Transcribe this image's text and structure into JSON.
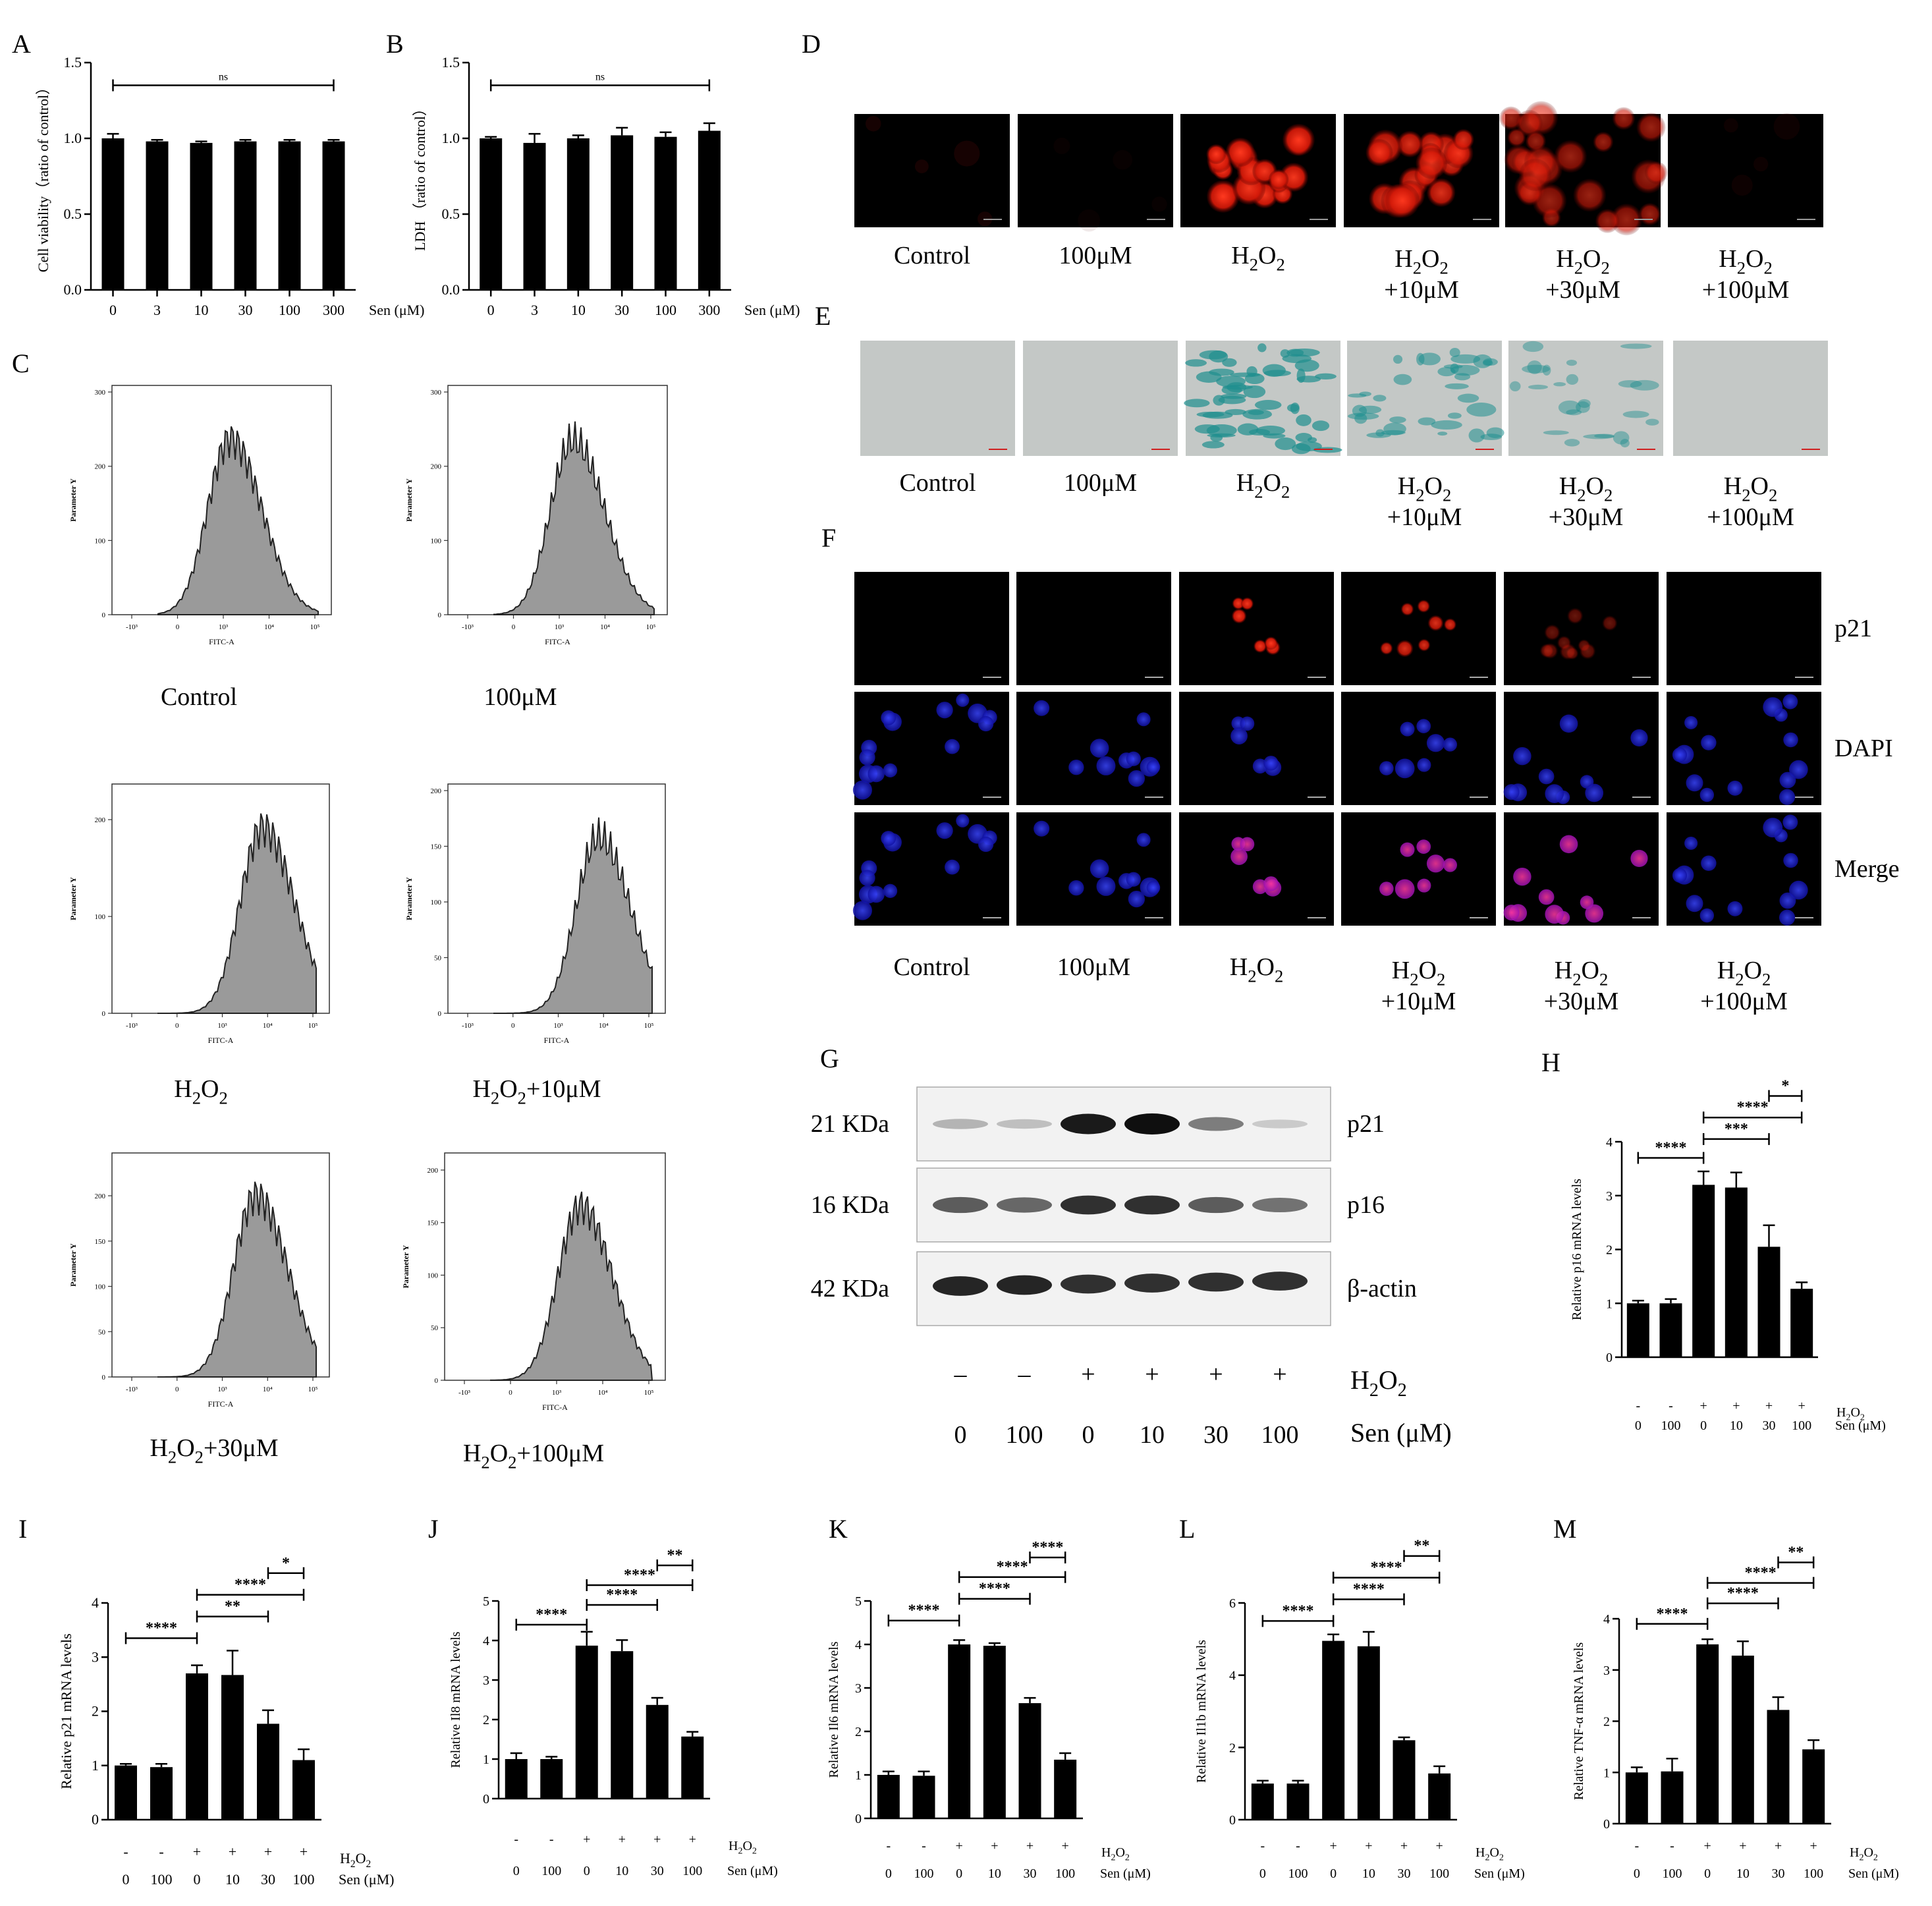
{
  "colors": {
    "bar": "#000000",
    "histogram_fill": "#9a9a9a",
    "red_stain": "#ff2a1a",
    "blue_stain": "#2430ff",
    "beta_gal": "#1f8f8f",
    "background": "#ffffff"
  },
  "panels": {
    "A": {
      "letter": "A"
    },
    "B": {
      "letter": "B"
    },
    "C": {
      "letter": "C",
      "y_axis_label": "Parameter Y",
      "x_axis_label": "FITC-A",
      "plots": [
        {
          "caption": "Control",
          "sub": "",
          "yticks": [
            "0",
            "100",
            "200",
            "300"
          ],
          "ymax": 300,
          "peak_log": 2.3,
          "height_frac": 0.88
        },
        {
          "caption": "100μM",
          "sub": "",
          "yticks": [
            "0",
            "100",
            "200",
            "300"
          ],
          "ymax": 300,
          "peak_log": 2.5,
          "height_frac": 0.87
        },
        {
          "caption": "H",
          "sub": "2",
          "after": "O",
          "sub2": "2",
          "tail": "",
          "yticks": [
            "0",
            "100",
            "200"
          ],
          "ymax": 230,
          "peak_log": 3.3,
          "height_frac": 0.93
        },
        {
          "caption": "H",
          "sub": "2",
          "after": "O",
          "sub2": "2",
          "tail": "+10μM",
          "yticks": [
            "0",
            "50",
            "100",
            "150",
            "200"
          ],
          "ymax": 200,
          "peak_log": 3.3,
          "height_frac": 0.88
        },
        {
          "caption": "H",
          "sub": "2",
          "after": "O",
          "sub2": "2",
          "tail": "+30μM",
          "yticks": [
            "0",
            "50",
            "100",
            "150",
            "200"
          ],
          "ymax": 240,
          "peak_log": 3.1,
          "height_frac": 0.93
        },
        {
          "caption": "H",
          "sub": "2",
          "after": "O",
          "sub2": "2",
          "tail": "+100μM",
          "yticks": [
            "0",
            "50",
            "100",
            "150",
            "200"
          ],
          "ymax": 210,
          "peak_log": 2.8,
          "height_frac": 0.88
        }
      ],
      "xticks": [
        "-10³",
        "0",
        "10³",
        "10⁴",
        "10⁵"
      ]
    },
    "D": {
      "letter": "D",
      "labels": [
        "Control",
        "100μM",
        "H2O2",
        "H2O2+10μM",
        "H2O2+30μM",
        "H2O2+100μM"
      ],
      "red_intensity": [
        0.08,
        0.03,
        0.95,
        0.85,
        0.6,
        0.05
      ]
    },
    "E": {
      "letter": "E",
      "labels": [
        "Control",
        "100μM",
        "H2O2",
        "H2O2+10μM",
        "H2O2+30μM",
        "H2O2+100μM"
      ],
      "stain_intensity": [
        0.0,
        0.0,
        0.9,
        0.6,
        0.4,
        0.0
      ]
    },
    "F": {
      "letter": "F",
      "rows": [
        "p21",
        "DAPI",
        "Merge"
      ],
      "labels": [
        "Control",
        "100μM",
        "H2O2",
        "H2O2+10μM",
        "H2O2+30μM",
        "H2O2+100μM"
      ],
      "p21_intensity": [
        0.0,
        0.0,
        0.95,
        0.85,
        0.4,
        0.0
      ]
    },
    "G": {
      "letter": "G",
      "bands": [
        {
          "size": "21 KDa",
          "protein": "p21",
          "intensity": [
            0.25,
            0.2,
            0.95,
            1.0,
            0.5,
            0.15
          ]
        },
        {
          "size": "16 KDa",
          "protein": "p16",
          "intensity": [
            0.65,
            0.6,
            0.85,
            0.85,
            0.65,
            0.55
          ]
        },
        {
          "size": "42 KDa",
          "protein": "β-actin",
          "intensity": [
            0.9,
            0.9,
            0.85,
            0.85,
            0.85,
            0.85
          ]
        }
      ],
      "h2o2_row": [
        "–",
        "–",
        "+",
        "+",
        "+",
        "+"
      ],
      "h2o2_label": "H2O2",
      "sen_row": [
        "0",
        "100",
        "0",
        "10",
        "30",
        "100"
      ],
      "sen_label": "Sen (μM)"
    },
    "treat": {
      "h2o2": [
        "-",
        "-",
        "+",
        "+",
        "+",
        "+"
      ],
      "sen": [
        "0",
        "100",
        "0",
        "10",
        "30",
        "100"
      ],
      "h2o2_label": "H2O2",
      "sen_label": "Sen (μM)"
    }
  },
  "chart_data": [
    {
      "panel": "A",
      "type": "bar",
      "categories": [
        "0",
        "3",
        "10",
        "30",
        "100",
        "300"
      ],
      "values": [
        1.0,
        0.98,
        0.97,
        0.98,
        0.98,
        0.98
      ],
      "errors": [
        0.03,
        0.01,
        0.01,
        0.01,
        0.01,
        0.01
      ],
      "ylabel": "Cell viability（ratio of control）",
      "xlabel": "Sen (μM)",
      "ylim": [
        0,
        1.5
      ],
      "yticks": [
        "0.0",
        "0.5",
        "1.0",
        "1.5"
      ],
      "sig": [
        {
          "from": 0,
          "to": 5,
          "label": "ns",
          "y": 1.35
        }
      ]
    },
    {
      "panel": "B",
      "type": "bar",
      "categories": [
        "0",
        "3",
        "10",
        "30",
        "100",
        "300"
      ],
      "values": [
        1.0,
        0.97,
        1.0,
        1.02,
        1.01,
        1.05
      ],
      "errors": [
        0.01,
        0.06,
        0.02,
        0.05,
        0.03,
        0.05
      ],
      "ylabel": "LDH （ratio of control）",
      "xlabel": "Sen (μM)",
      "ylim": [
        0,
        1.5
      ],
      "yticks": [
        "0.0",
        "0.5",
        "1.0",
        "1.5"
      ],
      "sig": [
        {
          "from": 0,
          "to": 5,
          "label": "ns",
          "y": 1.35
        }
      ]
    },
    {
      "panel": "H",
      "type": "bar",
      "categories": [
        "0",
        "100",
        "0",
        "10",
        "30",
        "100"
      ],
      "values": [
        1.0,
        1.0,
        3.2,
        3.15,
        2.05,
        1.27
      ],
      "errors": [
        0.05,
        0.08,
        0.25,
        0.28,
        0.4,
        0.12
      ],
      "ylabel": "Relative p16 mRNA levels",
      "ylim": [
        0,
        4
      ],
      "yticks": [
        "0",
        "1",
        "2",
        "3",
        "4"
      ],
      "sig": [
        {
          "from": 0,
          "to": 2,
          "label": "****",
          "y": 3.7
        },
        {
          "from": 2,
          "to": 4,
          "label": "***",
          "y": 4.05
        },
        {
          "from": 2,
          "to": 5,
          "label": "****",
          "y": 4.45
        },
        {
          "from": 4,
          "to": 5,
          "label": "*",
          "y": 4.85
        }
      ]
    },
    {
      "panel": "I",
      "type": "bar",
      "categories": [
        "0",
        "100",
        "0",
        "10",
        "30",
        "100"
      ],
      "values": [
        1.0,
        0.97,
        2.7,
        2.67,
        1.77,
        1.1
      ],
      "errors": [
        0.03,
        0.06,
        0.15,
        0.45,
        0.25,
        0.2
      ],
      "ylabel": "Relative p21 mRNA levels",
      "ylim": [
        0,
        4
      ],
      "yticks": [
        "0",
        "1",
        "2",
        "3",
        "4"
      ],
      "sig": [
        {
          "from": 0,
          "to": 2,
          "label": "****",
          "y": 3.35
        },
        {
          "from": 2,
          "to": 4,
          "label": "**",
          "y": 3.75
        },
        {
          "from": 2,
          "to": 5,
          "label": "****",
          "y": 4.15
        },
        {
          "from": 4,
          "to": 5,
          "label": "*",
          "y": 4.55
        }
      ]
    },
    {
      "panel": "J",
      "type": "bar",
      "categories": [
        "0",
        "100",
        "0",
        "10",
        "30",
        "100"
      ],
      "values": [
        1.0,
        1.0,
        3.87,
        3.73,
        2.37,
        1.57
      ],
      "errors": [
        0.15,
        0.06,
        0.35,
        0.28,
        0.18,
        0.12
      ],
      "ylabel": "Relative Il8 mRNA levels",
      "ylim": [
        0,
        5
      ],
      "yticks": [
        "0",
        "1",
        "2",
        "3",
        "4",
        "5"
      ],
      "sig": [
        {
          "from": 0,
          "to": 2,
          "label": "****",
          "y": 4.4
        },
        {
          "from": 2,
          "to": 4,
          "label": "****",
          "y": 4.9
        },
        {
          "from": 2,
          "to": 5,
          "label": "****",
          "y": 5.4
        },
        {
          "from": 4,
          "to": 5,
          "label": "**",
          "y": 5.9
        }
      ]
    },
    {
      "panel": "K",
      "type": "bar",
      "categories": [
        "0",
        "100",
        "0",
        "10",
        "30",
        "100"
      ],
      "values": [
        1.0,
        0.98,
        4.0,
        3.97,
        2.65,
        1.35
      ],
      "errors": [
        0.08,
        0.1,
        0.1,
        0.06,
        0.12,
        0.15
      ],
      "ylabel": "Relative Il6 mRNA levels",
      "ylim": [
        0,
        5
      ],
      "yticks": [
        "0",
        "1",
        "2",
        "3",
        "4",
        "5"
      ],
      "sig": [
        {
          "from": 0,
          "to": 2,
          "label": "****",
          "y": 4.55
        },
        {
          "from": 2,
          "to": 4,
          "label": "****",
          "y": 5.05
        },
        {
          "from": 2,
          "to": 5,
          "label": "****",
          "y": 5.55
        },
        {
          "from": 4,
          "to": 5,
          "label": "****",
          "y": 6.0
        }
      ]
    },
    {
      "panel": "L",
      "type": "bar",
      "categories": [
        "0",
        "100",
        "0",
        "10",
        "30",
        "100"
      ],
      "values": [
        1.0,
        1.0,
        4.95,
        4.8,
        2.2,
        1.28
      ],
      "errors": [
        0.08,
        0.08,
        0.18,
        0.4,
        0.08,
        0.2
      ],
      "ylabel": "Relative Il1b mRNA levels",
      "ylim": [
        0,
        6
      ],
      "yticks": [
        "0",
        "2",
        "4",
        "6"
      ],
      "sig": [
        {
          "from": 0,
          "to": 2,
          "label": "****",
          "y": 5.5
        },
        {
          "from": 2,
          "to": 4,
          "label": "****",
          "y": 6.1
        },
        {
          "from": 2,
          "to": 5,
          "label": "****",
          "y": 6.7
        },
        {
          "from": 4,
          "to": 5,
          "label": "**",
          "y": 7.3
        }
      ]
    },
    {
      "panel": "M",
      "type": "bar",
      "categories": [
        "0",
        "100",
        "0",
        "10",
        "30",
        "100"
      ],
      "values": [
        1.0,
        1.02,
        3.5,
        3.28,
        2.22,
        1.45
      ],
      "errors": [
        0.1,
        0.25,
        0.1,
        0.28,
        0.25,
        0.18
      ],
      "ylabel": "Relative TNF-α mRNA levels",
      "ylim": [
        0,
        4
      ],
      "yticks": [
        "0",
        "1",
        "2",
        "3",
        "4"
      ],
      "sig": [
        {
          "from": 0,
          "to": 2,
          "label": "****",
          "y": 3.9
        },
        {
          "from": 2,
          "to": 4,
          "label": "****",
          "y": 4.3
        },
        {
          "from": 2,
          "to": 5,
          "label": "****",
          "y": 4.7
        },
        {
          "from": 4,
          "to": 5,
          "label": "**",
          "y": 5.1
        }
      ]
    }
  ]
}
